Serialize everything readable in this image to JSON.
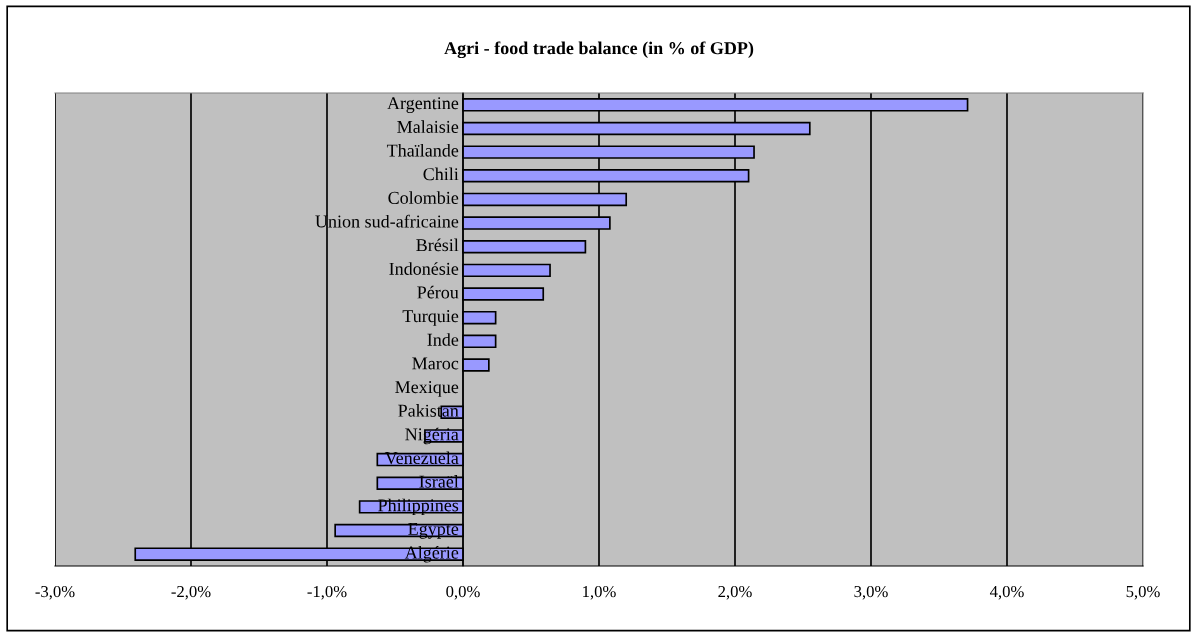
{
  "chart_data": {
    "type": "bar",
    "orientation": "horizontal",
    "title": "Agri - food trade balance (in % of GDP)",
    "categories": [
      "Argentine",
      "Malaisie",
      "Thaïlande",
      "Chili",
      "Colombie",
      "Union sud-africaine",
      "Brésil",
      "Indonésie",
      "Pérou",
      "Turquie",
      "Inde",
      "Maroc",
      "Mexique",
      "Pakistan",
      "Nigéria",
      "Venezuela",
      "Israël",
      "Philippines",
      "Egypte",
      "Algérie"
    ],
    "values": [
      3.71,
      2.55,
      2.14,
      2.1,
      1.2,
      1.08,
      0.9,
      0.64,
      0.59,
      0.24,
      0.24,
      0.19,
      0,
      -0.16,
      -0.28,
      -0.63,
      -0.63,
      -0.76,
      -0.94,
      -2.41
    ],
    "color": "#9999ff",
    "xlim": [
      -3,
      5
    ],
    "xticks": [
      {
        "value": -3,
        "label": "-3,0%"
      },
      {
        "value": -2,
        "label": "-2,0%"
      },
      {
        "value": -1,
        "label": "-1,0%"
      },
      {
        "value": 0,
        "label": "0,0%"
      },
      {
        "value": 1,
        "label": "1,0%"
      },
      {
        "value": 2,
        "label": "2,0%"
      },
      {
        "value": 3,
        "label": "3,0%"
      },
      {
        "value": 4,
        "label": "4,0%"
      },
      {
        "value": 5,
        "label": "5,0%"
      }
    ],
    "grid": "x",
    "legend": false
  }
}
